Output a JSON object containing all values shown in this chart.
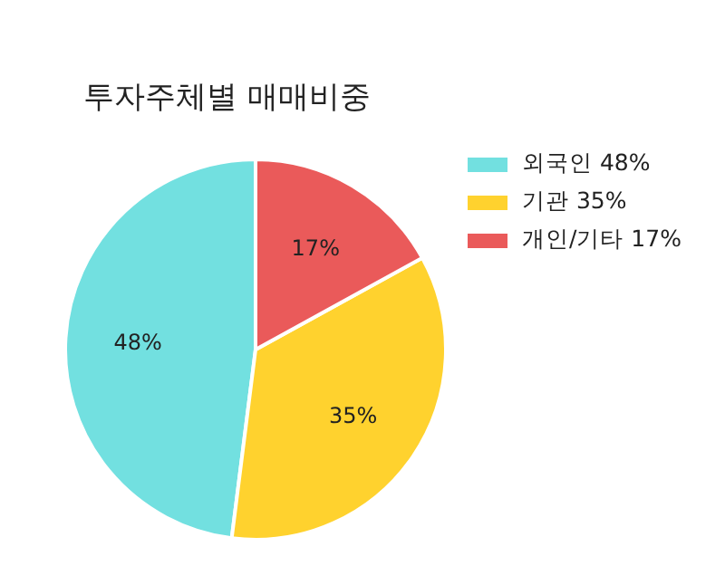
{
  "chart_data": {
    "type": "pie",
    "title": "투자주체별 매매비중",
    "categories": [
      "외국인",
      "기관",
      "개인/기타"
    ],
    "values": [
      48,
      35,
      17
    ],
    "value_labels": [
      "48%",
      "35%",
      "17%"
    ],
    "colors": [
      "#72e0e0",
      "#ffd22e",
      "#ea5a5a"
    ],
    "legend": "right"
  }
}
